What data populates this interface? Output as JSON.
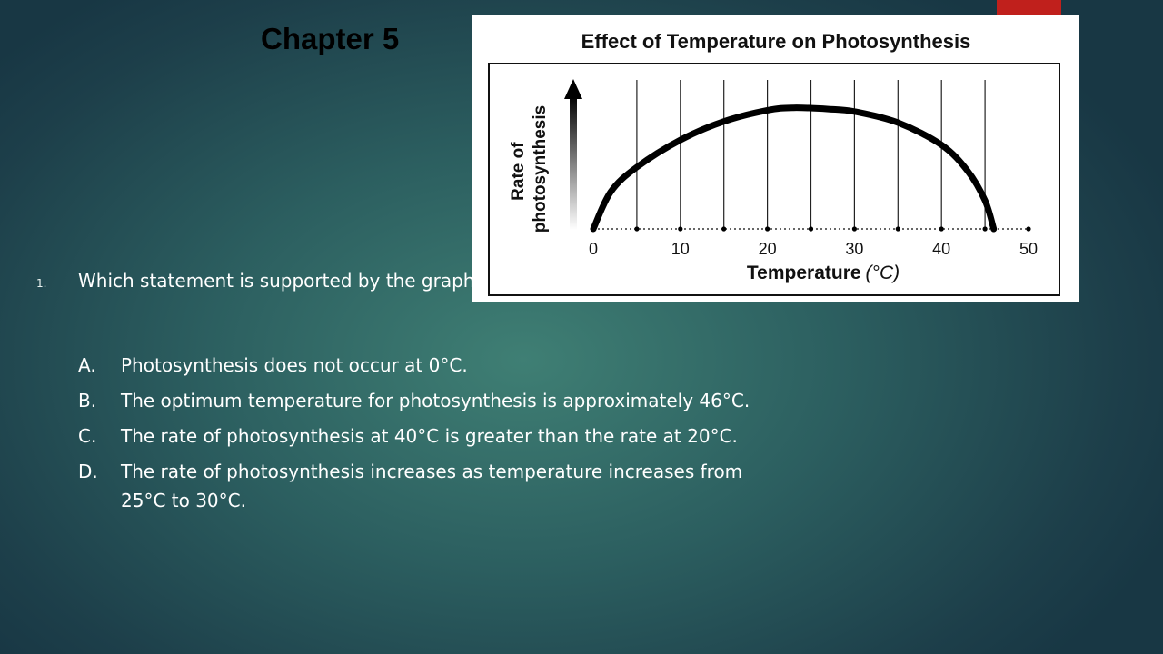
{
  "slide": {
    "title": "Chapter 5",
    "question_number": "1.",
    "question_text": "Which statement is supported by the graph?",
    "options": [
      {
        "letter": "A.",
        "text": "Photosynthesis does not occur at 0°C."
      },
      {
        "letter": "B.",
        "text": "The optimum temperature for photosynthesis is approximately 46°C."
      },
      {
        "letter": "C.",
        "text": "The rate of photosynthesis at 40°C is greater  than the rate at 20°C."
      },
      {
        "letter": "D.",
        "text": "The rate of photosynthesis increases as temperature increases from 25°C to 30°C."
      }
    ],
    "accent_color": "#c0201c"
  },
  "chart_data": {
    "type": "line",
    "title": "Effect of Temperature on Photosynthesis",
    "xlabel": "Temperature",
    "xlabel_unit": "(°C)",
    "ylabel": "Rate of photosynthesis",
    "xlim": [
      0,
      50
    ],
    "ylim": [
      0,
      1
    ],
    "x_ticks": [
      "0",
      "10",
      "20",
      "30",
      "40",
      "50"
    ],
    "grid": "vertical",
    "series": [
      {
        "x": [
          0,
          2,
          5,
          10,
          15,
          20,
          23,
          27,
          30,
          35,
          40,
          43,
          45,
          46
        ],
        "values": [
          0.0,
          0.3,
          0.5,
          0.72,
          0.87,
          0.96,
          0.98,
          0.97,
          0.95,
          0.86,
          0.68,
          0.47,
          0.23,
          0.0
        ]
      }
    ]
  }
}
